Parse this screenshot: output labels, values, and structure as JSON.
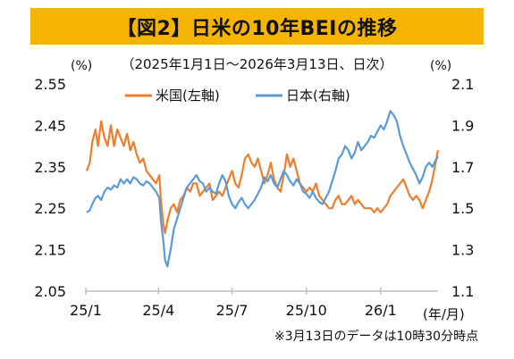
{
  "header": {
    "title": "【図2】日米の10年BEIの推移"
  },
  "subtitle": "（2025年1月1日～2026年3月13日、日次）",
  "footnote": "※3月13日のデータは10時30分時点",
  "chart_data": {
    "type": "line",
    "title": "【図2】日米の10年BEIの推移",
    "subtitle": "（2025年1月1日～2026年3月13日、日次）",
    "left_axis": {
      "unit": "(%)",
      "ticks": [
        "2.55",
        "2.45",
        "2.35",
        "2.25",
        "2.15",
        "2.05"
      ],
      "ylim": [
        2.05,
        2.55
      ]
    },
    "right_axis": {
      "unit": "(%)",
      "ticks": [
        "2.1",
        "1.9",
        "1.7",
        "1.5",
        "1.3",
        "1.1"
      ],
      "ylim": [
        1.1,
        2.1
      ]
    },
    "x_axis": {
      "unit": "(年/月)",
      "ticks": [
        "25/1",
        "25/4",
        "25/7",
        "25/10",
        "26/1"
      ]
    },
    "grid": false,
    "legend": {
      "placement": "top-center"
    },
    "colors": {
      "us": "#ee7d2c",
      "jp": "#5a9bd5",
      "banner": "#f5b400",
      "axis": "#bfbfbf"
    },
    "series": [
      {
        "name": "米国(左軸)",
        "axis": "left",
        "color": "#ee7d2c",
        "x": [
          "2025-01-02",
          "2025-01-06",
          "2025-01-09",
          "2025-01-13",
          "2025-01-16",
          "2025-01-20",
          "2025-01-24",
          "2025-01-28",
          "2025-02-01",
          "2025-02-05",
          "2025-02-09",
          "2025-02-13",
          "2025-02-17",
          "2025-02-21",
          "2025-02-25",
          "2025-03-01",
          "2025-03-05",
          "2025-03-09",
          "2025-03-13",
          "2025-03-17",
          "2025-03-21",
          "2025-03-25",
          "2025-03-29",
          "2025-04-02",
          "2025-04-04",
          "2025-04-07",
          "2025-04-09",
          "2025-04-12",
          "2025-04-16",
          "2025-04-20",
          "2025-04-24",
          "2025-04-28",
          "2025-05-02",
          "2025-05-06",
          "2025-05-10",
          "2025-05-14",
          "2025-05-18",
          "2025-05-22",
          "2025-05-26",
          "2025-05-30",
          "2025-06-03",
          "2025-06-07",
          "2025-06-11",
          "2025-06-15",
          "2025-06-19",
          "2025-06-23",
          "2025-06-27",
          "2025-07-01",
          "2025-07-05",
          "2025-07-09",
          "2025-07-13",
          "2025-07-17",
          "2025-07-21",
          "2025-07-25",
          "2025-07-29",
          "2025-08-02",
          "2025-08-06",
          "2025-08-10",
          "2025-08-14",
          "2025-08-18",
          "2025-08-22",
          "2025-08-26",
          "2025-08-30",
          "2025-09-03",
          "2025-09-07",
          "2025-09-11",
          "2025-09-15",
          "2025-09-19",
          "2025-09-23",
          "2025-09-27",
          "2025-10-01",
          "2025-10-05",
          "2025-10-09",
          "2025-10-13",
          "2025-10-17",
          "2025-10-21",
          "2025-10-25",
          "2025-10-29",
          "2025-11-02",
          "2025-11-06",
          "2025-11-10",
          "2025-11-14",
          "2025-11-18",
          "2025-11-22",
          "2025-11-26",
          "2025-11-30",
          "2025-12-04",
          "2025-12-08",
          "2025-12-12",
          "2025-12-16",
          "2025-12-20",
          "2025-12-24",
          "2025-12-28",
          "2026-01-01",
          "2026-01-05",
          "2026-01-09",
          "2026-01-13",
          "2026-01-17",
          "2026-01-21",
          "2026-01-25",
          "2026-01-29",
          "2026-02-02",
          "2026-02-06",
          "2026-02-10",
          "2026-02-14",
          "2026-02-18",
          "2026-02-22",
          "2026-02-26",
          "2026-03-02",
          "2026-03-06",
          "2026-03-10",
          "2026-03-13"
        ],
        "values": [
          2.34,
          2.36,
          2.41,
          2.44,
          2.4,
          2.46,
          2.42,
          2.4,
          2.45,
          2.4,
          2.44,
          2.42,
          2.4,
          2.43,
          2.39,
          2.41,
          2.38,
          2.36,
          2.37,
          2.34,
          2.33,
          2.32,
          2.31,
          2.33,
          2.27,
          2.21,
          2.19,
          2.22,
          2.25,
          2.26,
          2.24,
          2.27,
          2.28,
          2.3,
          2.29,
          2.31,
          2.31,
          2.28,
          2.29,
          2.3,
          2.31,
          2.27,
          2.28,
          2.29,
          2.28,
          2.3,
          2.32,
          2.34,
          2.31,
          2.3,
          2.33,
          2.37,
          2.38,
          2.36,
          2.35,
          2.37,
          2.34,
          2.31,
          2.33,
          2.36,
          2.32,
          2.3,
          2.29,
          2.33,
          2.38,
          2.35,
          2.37,
          2.34,
          2.31,
          2.3,
          2.29,
          2.3,
          2.29,
          2.31,
          2.28,
          2.27,
          2.26,
          2.25,
          2.25,
          2.27,
          2.28,
          2.26,
          2.26,
          2.27,
          2.28,
          2.26,
          2.27,
          2.26,
          2.25,
          2.25,
          2.25,
          2.24,
          2.25,
          2.24,
          2.25,
          2.26,
          2.28,
          2.29,
          2.3,
          2.31,
          2.32,
          2.3,
          2.28,
          2.27,
          2.28,
          2.27,
          2.25,
          2.27,
          2.29,
          2.32,
          2.36,
          2.39
        ]
      },
      {
        "name": "日本(右軸)",
        "axis": "right",
        "color": "#5a9bd5",
        "x": [
          "2025-01-02",
          "2025-01-06",
          "2025-01-09",
          "2025-01-13",
          "2025-01-16",
          "2025-01-20",
          "2025-01-24",
          "2025-01-28",
          "2025-02-01",
          "2025-02-05",
          "2025-02-09",
          "2025-02-13",
          "2025-02-17",
          "2025-02-21",
          "2025-02-25",
          "2025-03-01",
          "2025-03-05",
          "2025-03-09",
          "2025-03-13",
          "2025-03-17",
          "2025-03-21",
          "2025-03-25",
          "2025-03-29",
          "2025-04-02",
          "2025-04-04",
          "2025-04-07",
          "2025-04-09",
          "2025-04-12",
          "2025-04-16",
          "2025-04-20",
          "2025-04-24",
          "2025-04-28",
          "2025-05-02",
          "2025-05-06",
          "2025-05-10",
          "2025-05-14",
          "2025-05-18",
          "2025-05-22",
          "2025-05-26",
          "2025-05-30",
          "2025-06-03",
          "2025-06-07",
          "2025-06-11",
          "2025-06-15",
          "2025-06-19",
          "2025-06-23",
          "2025-06-27",
          "2025-07-01",
          "2025-07-05",
          "2025-07-09",
          "2025-07-13",
          "2025-07-17",
          "2025-07-21",
          "2025-07-25",
          "2025-07-29",
          "2025-08-02",
          "2025-08-06",
          "2025-08-10",
          "2025-08-14",
          "2025-08-18",
          "2025-08-22",
          "2025-08-26",
          "2025-08-30",
          "2025-09-03",
          "2025-09-07",
          "2025-09-11",
          "2025-09-15",
          "2025-09-19",
          "2025-09-23",
          "2025-09-27",
          "2025-10-01",
          "2025-10-05",
          "2025-10-09",
          "2025-10-13",
          "2025-10-17",
          "2025-10-21",
          "2025-10-25",
          "2025-10-29",
          "2025-11-02",
          "2025-11-06",
          "2025-11-10",
          "2025-11-14",
          "2025-11-18",
          "2025-11-22",
          "2025-11-26",
          "2025-11-30",
          "2025-12-04",
          "2025-12-08",
          "2025-12-12",
          "2025-12-16",
          "2025-12-20",
          "2025-12-24",
          "2025-12-28",
          "2026-01-01",
          "2026-01-05",
          "2026-01-09",
          "2026-01-13",
          "2026-01-17",
          "2026-01-21",
          "2026-01-25",
          "2026-01-29",
          "2026-02-02",
          "2026-02-06",
          "2026-02-10",
          "2026-02-14",
          "2026-02-18",
          "2026-02-22",
          "2026-02-26",
          "2026-03-02",
          "2026-03-06",
          "2026-03-10",
          "2026-03-13"
        ],
        "values": [
          1.48,
          1.49,
          1.52,
          1.55,
          1.56,
          1.54,
          1.58,
          1.6,
          1.59,
          1.61,
          1.6,
          1.64,
          1.62,
          1.64,
          1.62,
          1.65,
          1.64,
          1.62,
          1.61,
          1.63,
          1.62,
          1.6,
          1.58,
          1.55,
          1.44,
          1.34,
          1.25,
          1.22,
          1.3,
          1.4,
          1.45,
          1.5,
          1.55,
          1.6,
          1.62,
          1.64,
          1.66,
          1.63,
          1.62,
          1.58,
          1.6,
          1.58,
          1.57,
          1.62,
          1.66,
          1.63,
          1.56,
          1.52,
          1.5,
          1.53,
          1.55,
          1.52,
          1.5,
          1.52,
          1.54,
          1.57,
          1.6,
          1.65,
          1.63,
          1.66,
          1.62,
          1.6,
          1.64,
          1.68,
          1.66,
          1.63,
          1.61,
          1.64,
          1.62,
          1.58,
          1.57,
          1.55,
          1.58,
          1.55,
          1.53,
          1.52,
          1.55,
          1.58,
          1.63,
          1.68,
          1.74,
          1.76,
          1.8,
          1.78,
          1.74,
          1.77,
          1.82,
          1.78,
          1.8,
          1.82,
          1.85,
          1.84,
          1.87,
          1.9,
          1.88,
          1.92,
          1.97,
          1.95,
          1.92,
          1.85,
          1.8,
          1.76,
          1.72,
          1.69,
          1.66,
          1.62,
          1.65,
          1.7,
          1.72,
          1.7,
          1.73,
          1.75
        ]
      }
    ]
  }
}
